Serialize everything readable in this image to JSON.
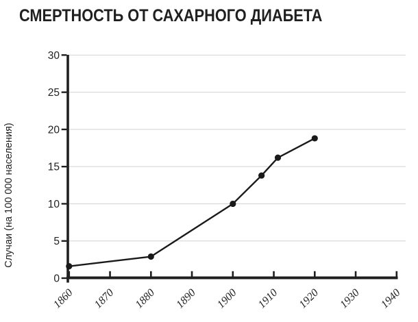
{
  "chart_data": {
    "type": "line",
    "title": "СМЕРТНОСТЬ ОТ САХАРНОГО ДИАБЕТА",
    "xlabel": "",
    "ylabel": "Случаи (на 100 000 населения)",
    "x_ticks": [
      "1860",
      "1870",
      "1880",
      "1890",
      "1900",
      "1910",
      "1920",
      "1930",
      "1940"
    ],
    "y_ticks": [
      0,
      5,
      10,
      15,
      20,
      25,
      30
    ],
    "xlim": [
      1860,
      1942
    ],
    "ylim": [
      0,
      30
    ],
    "grid": "horizontal-only",
    "legend": "none",
    "series": [
      {
        "points": [
          {
            "year": 1860,
            "value": 1.6
          },
          {
            "year": 1880,
            "value": 2.9
          },
          {
            "year": 1900,
            "value": 10.0
          },
          {
            "year": 1907,
            "value": 13.8
          },
          {
            "year": 1911,
            "value": 16.2
          },
          {
            "year": 1920,
            "value": 18.8
          }
        ]
      }
    ],
    "style": {
      "line_color": "#1a1a1a",
      "marker": "filled-circle",
      "marker_color": "#1a1a1a",
      "grid_color": "#d2d2d2",
      "axis_color": "#1f1f1f",
      "text_color": "#222222",
      "background": "#ffffff"
    }
  }
}
